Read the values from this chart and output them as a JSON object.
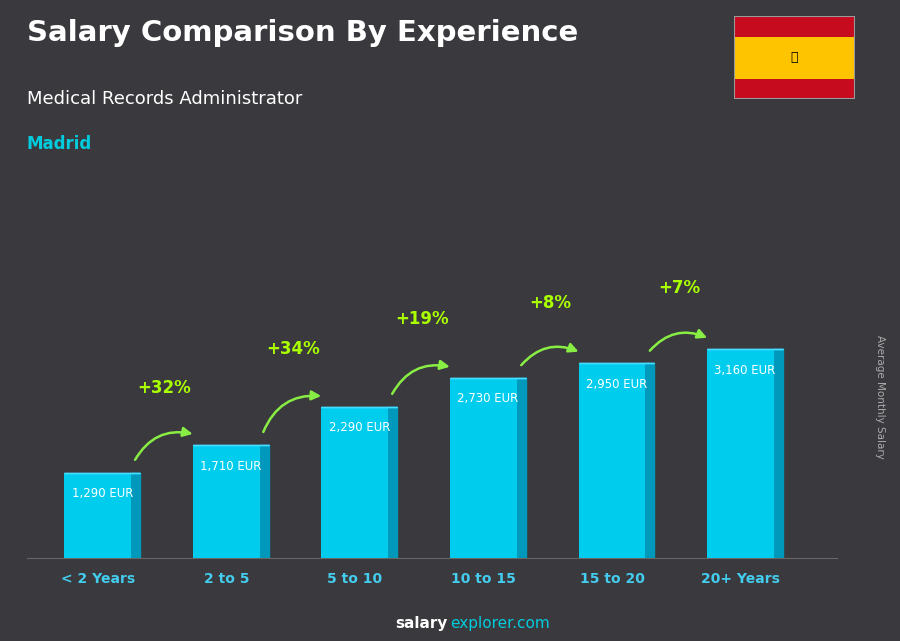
{
  "title_line1": "Salary Comparison By Experience",
  "title_line2": "Medical Records Administrator",
  "title_line3": "Madrid",
  "categories": [
    "< 2 Years",
    "2 to 5",
    "5 to 10",
    "10 to 15",
    "15 to 20",
    "20+ Years"
  ],
  "values": [
    1290,
    1710,
    2290,
    2730,
    2950,
    3160
  ],
  "pct_changes": [
    "+32%",
    "+34%",
    "+19%",
    "+8%",
    "+7%"
  ],
  "bar_color_face": "#00CCEE",
  "bar_color_side": "#0099BB",
  "bar_color_top": "#44DDFF",
  "ylabel_text": "Average Monthly Salary",
  "footer_bold": "salary",
  "footer_normal": "explorer.com",
  "arrow_color": "#88EE44",
  "pct_color": "#AAFF00",
  "value_color": "#FFFFFF",
  "title1_color": "#FFFFFF",
  "title2_color": "#FFFFFF",
  "title3_color": "#00CCDD",
  "xlabel_color": "#44CCEE",
  "bg_color": "#3a3a3e",
  "bar_width": 0.52
}
